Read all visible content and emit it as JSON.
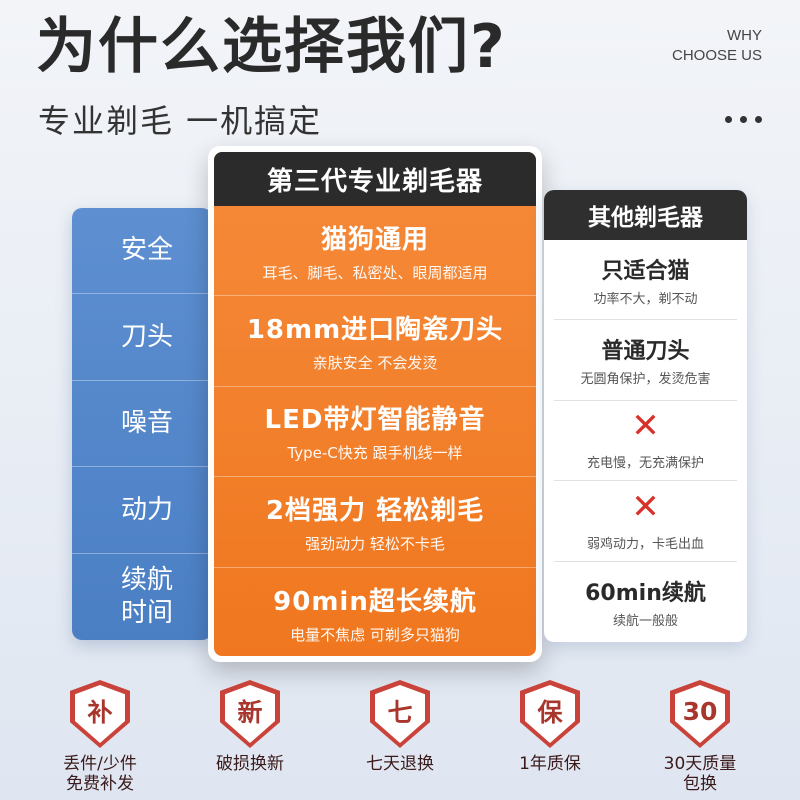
{
  "header": {
    "title": "为什么选择我们?",
    "subtitle": "专业剃毛 一机搞定",
    "why_line1": "WHY",
    "why_line2": "CHOOSE US"
  },
  "left": {
    "rows": [
      "安全",
      "刀头",
      "噪音",
      "动力",
      "续航时间"
    ]
  },
  "center": {
    "heading": "第三代专业剃毛器",
    "rows": [
      {
        "main": "猫狗通用",
        "sub": "耳毛、脚毛、私密处、眼周都适用"
      },
      {
        "main": "18mm进口陶瓷刀头",
        "sub": "亲肤安全 不会发烫"
      },
      {
        "main": "LED带灯智能静音",
        "sub": "Type-C快充 跟手机线一样"
      },
      {
        "main": "2档强力 轻松剃毛",
        "sub": "强劲动力 轻松不卡毛"
      },
      {
        "main": "90min超长续航",
        "sub": "电量不焦虑 可剃多只猫狗"
      }
    ]
  },
  "right": {
    "heading": "其他剃毛器",
    "rows": [
      {
        "main": "只适合猫",
        "sub": "功率不大，剃不动",
        "icon": ""
      },
      {
        "main": "普通刀头",
        "sub": "无圆角保护，发烫危害",
        "icon": ""
      },
      {
        "main": "",
        "sub": "充电慢，无充满保护",
        "icon": "cross-icon"
      },
      {
        "main": "",
        "sub": "弱鸡动力，卡毛出血",
        "icon": "cross-icon"
      },
      {
        "main": "60min续航",
        "sub": "续航一般般",
        "icon": ""
      }
    ]
  },
  "badges": [
    {
      "char": "补",
      "label": "丢件/少件\n免费补发"
    },
    {
      "char": "新",
      "label": "破损换新"
    },
    {
      "char": "七",
      "label": "七天退换"
    },
    {
      "char": "保",
      "label": "1年质保"
    },
    {
      "char": "30",
      "label": "30天质量\n包换"
    }
  ],
  "colors": {
    "orange": "#f0771f",
    "blue": "#4b7fc4",
    "shield_red": "#c9433a",
    "cross_red": "#d8312a"
  }
}
